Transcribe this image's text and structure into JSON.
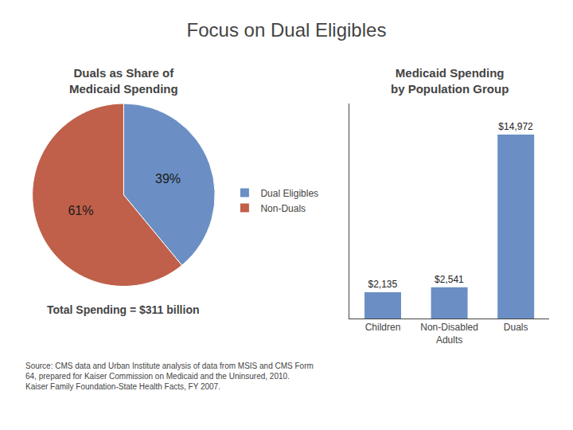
{
  "title": "Focus on Dual Eligibles",
  "annotations": [
    "Source: CMS data and Urban Institute analysis of data from MSIS and CMS Form\n64, prepared for Kaiser Commission on Medicaid and the Uninsured, 2010.\nKaiser Family Foundation-State Health Facts, FY 2007."
  ],
  "chart_data": [
    {
      "type": "pie",
      "title": "Duals as Share of\nMedicaid Spending",
      "categories": [
        "Dual Eligibles",
        "Non-Duals"
      ],
      "values": [
        39,
        61
      ],
      "value_labels": [
        "39%",
        "61%"
      ],
      "colors": [
        "#6b8fc4",
        "#c0604a"
      ],
      "data_labels": true,
      "legend": "right",
      "annotations": [
        "Total Spending = $311 billion"
      ]
    },
    {
      "type": "bar",
      "title": "Medicaid Spending\nby Population Group",
      "categories": [
        "Children",
        "Non-Disabled\nAdults",
        "Duals"
      ],
      "values": [
        2135,
        2541,
        14972
      ],
      "value_labels": [
        "$2,135",
        "$2,541",
        "$14,972"
      ],
      "color": "#6b8fc4",
      "ylim": [
        0,
        17500
      ],
      "yticks": [],
      "grid": false,
      "data_labels": true,
      "tick_labels": "x"
    }
  ]
}
